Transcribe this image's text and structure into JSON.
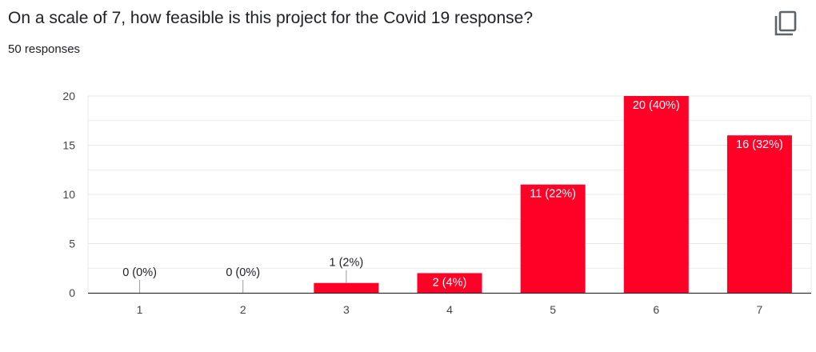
{
  "header": {
    "title": "On a scale of 7, how feasible is this project for the Covid 19 response?",
    "responses": "50 responses"
  },
  "colors": {
    "bar": "#ff0026",
    "grid": "#e8e8e8",
    "axis": "#333333",
    "text": "#202124"
  },
  "icons": {
    "copy": "copy-icon"
  },
  "chart_data": {
    "type": "bar",
    "categories": [
      "1",
      "2",
      "3",
      "4",
      "5",
      "6",
      "7"
    ],
    "values": [
      0,
      0,
      1,
      2,
      11,
      20,
      16
    ],
    "data_labels": [
      "0 (0%)",
      "0 (0%)",
      "1 (2%)",
      "2 (4%)",
      "11 (22%)",
      "20 (40%)",
      "16 (32%)"
    ],
    "ylim": [
      0,
      20
    ],
    "yticks": [
      "0",
      "5",
      "10",
      "15",
      "20"
    ],
    "grid": true,
    "legend": "none"
  }
}
